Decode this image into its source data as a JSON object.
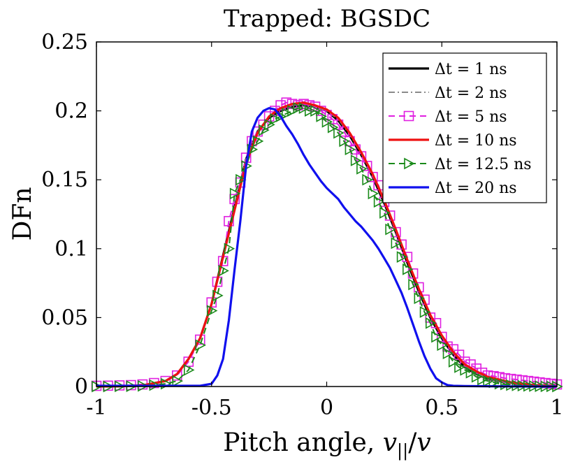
{
  "chart_data": {
    "type": "line",
    "title": "Trapped: BGSDC",
    "xlabel": "Pitch angle, v||/v",
    "ylabel": "DFn",
    "xlim": [
      -1,
      1
    ],
    "ylim": [
      0,
      0.25
    ],
    "xticks": [
      -1,
      -0.5,
      0,
      0.5,
      1
    ],
    "xtick_labels": [
      "-1",
      "-0.5",
      "0",
      "0.5",
      "1"
    ],
    "yticks": [
      0,
      0.05,
      0.1,
      0.15,
      0.2,
      0.25
    ],
    "ytick_labels": [
      "0",
      "0.05",
      "0.1",
      "0.15",
      "0.2",
      "0.25"
    ],
    "legend_position": "top-right",
    "series": [
      {
        "name": "Δt = 1 ns",
        "color": "#000000",
        "style": "solid",
        "marker": "none",
        "x": [
          -1,
          -0.9,
          -0.8,
          -0.7,
          -0.65,
          -0.6,
          -0.55,
          -0.5,
          -0.45,
          -0.4,
          -0.35,
          -0.3,
          -0.25,
          -0.2,
          -0.15,
          -0.1,
          -0.05,
          0,
          0.05,
          0.1,
          0.15,
          0.2,
          0.25,
          0.3,
          0.35,
          0.4,
          0.45,
          0.5,
          0.55,
          0.6,
          0.65,
          0.7,
          0.8,
          0.9,
          1
        ],
        "y": [
          0,
          0.0002,
          0.0008,
          0.004,
          0.009,
          0.02,
          0.035,
          0.06,
          0.095,
          0.13,
          0.165,
          0.185,
          0.195,
          0.2,
          0.203,
          0.204,
          0.203,
          0.2,
          0.193,
          0.182,
          0.168,
          0.152,
          0.133,
          0.112,
          0.09,
          0.069,
          0.05,
          0.035,
          0.023,
          0.014,
          0.009,
          0.006,
          0.003,
          0.001,
          0.0003
        ]
      },
      {
        "name": "Δt = 2 ns",
        "color": "#8a8a8a",
        "style": "dashdot",
        "marker": "none",
        "x": [
          -1,
          -0.9,
          -0.8,
          -0.7,
          -0.65,
          -0.6,
          -0.55,
          -0.5,
          -0.45,
          -0.4,
          -0.35,
          -0.3,
          -0.25,
          -0.2,
          -0.15,
          -0.1,
          -0.05,
          0,
          0.05,
          0.1,
          0.15,
          0.2,
          0.25,
          0.3,
          0.35,
          0.4,
          0.45,
          0.5,
          0.55,
          0.6,
          0.65,
          0.7,
          0.8,
          0.9,
          1
        ],
        "y": [
          0,
          0.0002,
          0.0008,
          0.004,
          0.009,
          0.02,
          0.035,
          0.06,
          0.094,
          0.13,
          0.165,
          0.185,
          0.196,
          0.201,
          0.204,
          0.205,
          0.203,
          0.2,
          0.194,
          0.183,
          0.169,
          0.153,
          0.134,
          0.113,
          0.091,
          0.07,
          0.051,
          0.036,
          0.024,
          0.015,
          0.01,
          0.006,
          0.003,
          0.001,
          0.0003
        ]
      },
      {
        "name": "Δt = 5 ns",
        "color": "#e020e0",
        "style": "dashed",
        "marker": "square",
        "x": [
          -1,
          -0.95,
          -0.9,
          -0.85,
          -0.8,
          -0.75,
          -0.7,
          -0.65,
          -0.6,
          -0.55,
          -0.5,
          -0.475,
          -0.45,
          -0.425,
          -0.4,
          -0.375,
          -0.35,
          -0.325,
          -0.3,
          -0.275,
          -0.25,
          -0.225,
          -0.2,
          -0.175,
          -0.15,
          -0.125,
          -0.1,
          -0.075,
          -0.05,
          -0.025,
          0,
          0.025,
          0.05,
          0.075,
          0.1,
          0.125,
          0.15,
          0.175,
          0.2,
          0.225,
          0.25,
          0.275,
          0.3,
          0.325,
          0.35,
          0.375,
          0.4,
          0.425,
          0.45,
          0.475,
          0.5,
          0.525,
          0.55,
          0.575,
          0.6,
          0.625,
          0.65,
          0.675,
          0.7,
          0.725,
          0.75,
          0.775,
          0.8,
          0.825,
          0.85,
          0.875,
          0.9,
          0.925,
          0.95,
          0.975,
          1
        ],
        "y": [
          0.0005,
          0.0006,
          0.0008,
          0.001,
          0.0015,
          0.0025,
          0.004,
          0.008,
          0.018,
          0.034,
          0.061,
          0.076,
          0.091,
          0.12,
          0.136,
          0.148,
          0.166,
          0.178,
          0.185,
          0.19,
          0.196,
          0.2,
          0.204,
          0.206,
          0.205,
          0.204,
          0.205,
          0.204,
          0.203,
          0.2,
          0.197,
          0.194,
          0.19,
          0.185,
          0.178,
          0.172,
          0.167,
          0.16,
          0.152,
          0.146,
          0.134,
          0.124,
          0.112,
          0.103,
          0.094,
          0.082,
          0.072,
          0.063,
          0.05,
          0.046,
          0.036,
          0.029,
          0.027,
          0.023,
          0.018,
          0.016,
          0.013,
          0.01,
          0.008,
          0.0075,
          0.0068,
          0.006,
          0.0055,
          0.005,
          0.0045,
          0.004,
          0.0035,
          0.003,
          0.0025,
          0.002,
          0.0015
        ]
      },
      {
        "name": "Δt = 10 ns",
        "color": "#ee1111",
        "style": "solid",
        "marker": "none",
        "x": [
          -1,
          -0.9,
          -0.8,
          -0.7,
          -0.65,
          -0.6,
          -0.55,
          -0.5,
          -0.45,
          -0.4,
          -0.35,
          -0.3,
          -0.25,
          -0.2,
          -0.15,
          -0.1,
          -0.05,
          0,
          0.05,
          0.1,
          0.15,
          0.2,
          0.25,
          0.3,
          0.35,
          0.4,
          0.45,
          0.5,
          0.55,
          0.6,
          0.65,
          0.7,
          0.8,
          0.9,
          1
        ],
        "y": [
          0,
          0.0002,
          0.0008,
          0.004,
          0.009,
          0.02,
          0.035,
          0.06,
          0.094,
          0.128,
          0.162,
          0.184,
          0.196,
          0.202,
          0.205,
          0.206,
          0.204,
          0.201,
          0.195,
          0.184,
          0.17,
          0.154,
          0.135,
          0.114,
          0.092,
          0.071,
          0.052,
          0.037,
          0.025,
          0.016,
          0.011,
          0.007,
          0.003,
          0.001,
          0.0003
        ]
      },
      {
        "name": "Δt = 12.5 ns",
        "color": "#1a8a1a",
        "style": "dashed",
        "marker": "triangle-right",
        "x": [
          -1,
          -0.95,
          -0.9,
          -0.85,
          -0.8,
          -0.75,
          -0.7,
          -0.65,
          -0.6,
          -0.55,
          -0.5,
          -0.475,
          -0.45,
          -0.425,
          -0.4,
          -0.375,
          -0.35,
          -0.325,
          -0.3,
          -0.275,
          -0.25,
          -0.225,
          -0.2,
          -0.175,
          -0.15,
          -0.125,
          -0.1,
          -0.075,
          -0.05,
          -0.025,
          0,
          0.025,
          0.05,
          0.075,
          0.1,
          0.125,
          0.15,
          0.175,
          0.2,
          0.225,
          0.25,
          0.275,
          0.3,
          0.325,
          0.35,
          0.375,
          0.4,
          0.425,
          0.45,
          0.475,
          0.5,
          0.525,
          0.55,
          0.575,
          0.6,
          0.625,
          0.65,
          0.675,
          0.7,
          0.725,
          0.75,
          0.775,
          0.8,
          0.825,
          0.85,
          0.875,
          0.9,
          0.925,
          0.95,
          0.975,
          1
        ],
        "y": [
          0,
          0,
          0.0001,
          0.0002,
          0.0004,
          0.001,
          0.002,
          0.004,
          0.012,
          0.03,
          0.055,
          0.066,
          0.084,
          0.1,
          0.14,
          0.15,
          0.16,
          0.172,
          0.178,
          0.186,
          0.19,
          0.194,
          0.196,
          0.198,
          0.2,
          0.202,
          0.202,
          0.2,
          0.2,
          0.196,
          0.192,
          0.188,
          0.184,
          0.178,
          0.172,
          0.164,
          0.158,
          0.15,
          0.14,
          0.134,
          0.126,
          0.114,
          0.104,
          0.094,
          0.085,
          0.074,
          0.064,
          0.054,
          0.046,
          0.036,
          0.03,
          0.024,
          0.018,
          0.014,
          0.012,
          0.01,
          0.007,
          0.005,
          0.004,
          0.003,
          0.002,
          0.0015,
          0.001,
          0.0008,
          0.0006,
          0.0004,
          0.0003,
          0.0002,
          0.0001,
          0.0001,
          0
        ]
      },
      {
        "name": "Δt = 20 ns",
        "color": "#1010ee",
        "style": "solid",
        "marker": "none",
        "x": [
          -1,
          -0.9,
          -0.8,
          -0.7,
          -0.6,
          -0.55,
          -0.5,
          -0.475,
          -0.45,
          -0.425,
          -0.4,
          -0.375,
          -0.35,
          -0.325,
          -0.3,
          -0.275,
          -0.25,
          -0.225,
          -0.2,
          -0.175,
          -0.15,
          -0.125,
          -0.1,
          -0.075,
          -0.05,
          -0.025,
          0,
          0.025,
          0.05,
          0.075,
          0.1,
          0.125,
          0.15,
          0.175,
          0.2,
          0.225,
          0.25,
          0.275,
          0.3,
          0.325,
          0.35,
          0.375,
          0.4,
          0.425,
          0.45,
          0.475,
          0.5,
          0.525,
          0.55,
          0.6,
          0.7,
          0.8,
          0.9,
          1
        ],
        "y": [
          0.0005,
          0.0005,
          0.0005,
          0.0005,
          0.0005,
          0.0005,
          0.002,
          0.008,
          0.02,
          0.048,
          0.085,
          0.12,
          0.16,
          0.185,
          0.195,
          0.2,
          0.202,
          0.201,
          0.196,
          0.189,
          0.183,
          0.176,
          0.168,
          0.161,
          0.155,
          0.149,
          0.144,
          0.14,
          0.136,
          0.13,
          0.125,
          0.12,
          0.116,
          0.111,
          0.106,
          0.1,
          0.093,
          0.086,
          0.077,
          0.068,
          0.057,
          0.045,
          0.033,
          0.022,
          0.013,
          0.006,
          0.003,
          0.001,
          0.0005,
          0.0003,
          0.0002,
          0.0001,
          0,
          0
        ]
      }
    ]
  }
}
